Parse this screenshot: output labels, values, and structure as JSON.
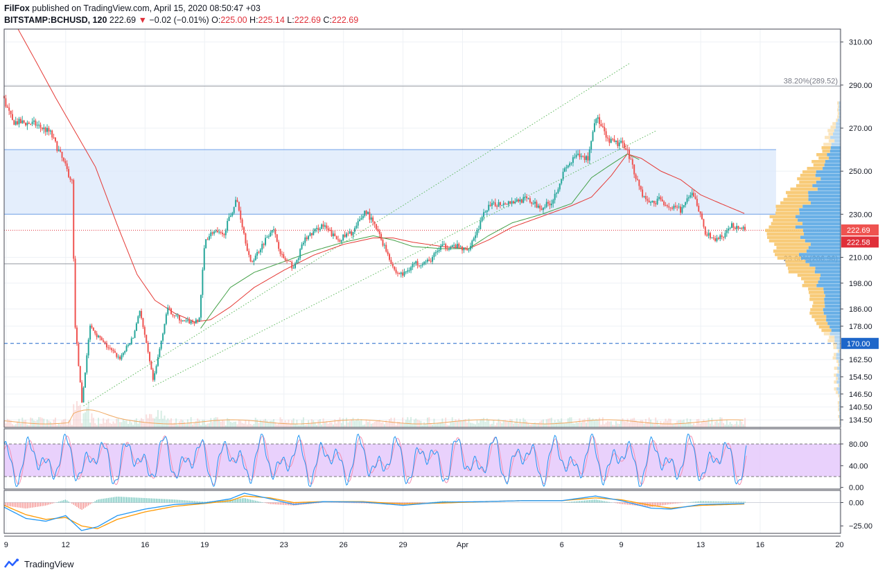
{
  "header": {
    "author": "FilFox",
    "published_text": "published on TradingView.com, April 15, 2020 08:50:47 +03",
    "symbol": "BITSTAMP:BCHUSD, 120",
    "last": "222.69",
    "change_arrow": "▼",
    "change": "−0.02 (−0.01%)",
    "o_label": "O:",
    "o": "225.00",
    "h_label": "H:",
    "h": "225.14",
    "l_label": "L:",
    "l": "222.69",
    "c_label": "C:",
    "c": "222.69"
  },
  "footer": {
    "brand": "TradingView"
  },
  "colors": {
    "up": "#26a69a",
    "down": "#ef5350",
    "ma_fast": "#43a047",
    "ma_slow": "#e53935",
    "zone": "#dbe8fb",
    "stoch_band": "#e3c6fb",
    "vp_up": "#f7c56a",
    "vp_down": "#5aa7e3",
    "marker_red": "#e0303a",
    "marker_blue": "#1e66c9"
  },
  "chart_data": [
    {
      "type": "candlestick",
      "panel": "price",
      "y_scale": "linear",
      "ylim": [
        131,
        316
      ],
      "y_ticks": [
        310.0,
        290.0,
        270.0,
        250.0,
        230.0,
        210.0,
        198.0,
        186.0,
        178.0,
        162.5,
        154.5,
        146.5,
        140.5,
        134.5
      ],
      "x_ticks": [
        {
          "label": "9",
          "day": 9
        },
        {
          "label": "12",
          "day": 12
        },
        {
          "label": "16",
          "day": 16
        },
        {
          "label": "19",
          "day": 19
        },
        {
          "label": "23",
          "day": 23
        },
        {
          "label": "26",
          "day": 26
        },
        {
          "label": "29",
          "day": 29
        },
        {
          "label": "Apr",
          "day": 32
        },
        {
          "label": "6",
          "day": 37
        },
        {
          "label": "9",
          "day": 40
        },
        {
          "label": "13",
          "day": 44
        },
        {
          "label": "16",
          "day": 47
        },
        {
          "label": "20",
          "day": 51
        }
      ],
      "xlim_days": [
        8.9,
        51.05
      ],
      "last_day": 46.3,
      "anchors": [
        [
          8.9,
          285
        ],
        [
          9.4,
          273
        ],
        [
          10.5,
          272
        ],
        [
          11.3,
          268
        ],
        [
          11.8,
          258
        ],
        [
          12.4,
          245
        ],
        [
          12.55,
          180
        ],
        [
          12.9,
          142
        ],
        [
          13.3,
          178
        ],
        [
          14,
          170
        ],
        [
          14.8,
          163
        ],
        [
          15.5,
          173
        ],
        [
          15.8,
          186
        ],
        [
          16.3,
          162
        ],
        [
          16.5,
          152
        ],
        [
          17.2,
          186
        ],
        [
          18,
          180
        ],
        [
          18.8,
          180
        ],
        [
          19.1,
          218
        ],
        [
          19.5,
          222
        ],
        [
          20,
          220
        ],
        [
          20.7,
          237
        ],
        [
          21.4,
          207
        ],
        [
          22,
          216
        ],
        [
          22.5,
          224
        ],
        [
          23,
          210
        ],
        [
          23.6,
          205
        ],
        [
          24.1,
          218
        ],
        [
          25,
          225
        ],
        [
          25.8,
          218
        ],
        [
          26.6,
          222
        ],
        [
          27.2,
          232
        ],
        [
          27.8,
          222
        ],
        [
          28.3,
          212
        ],
        [
          28.7,
          203
        ],
        [
          29.1,
          202
        ],
        [
          29.6,
          207
        ],
        [
          30.4,
          208
        ],
        [
          31,
          215
        ],
        [
          31.8,
          215
        ],
        [
          32.3,
          213
        ],
        [
          32.8,
          222
        ],
        [
          33.3,
          233
        ],
        [
          33.9,
          235
        ],
        [
          34.6,
          236
        ],
        [
          35.3,
          237
        ],
        [
          36,
          233
        ],
        [
          36.6,
          236
        ],
        [
          37.2,
          250
        ],
        [
          37.8,
          257
        ],
        [
          38.4,
          256
        ],
        [
          38.8,
          276
        ],
        [
          39.4,
          264
        ],
        [
          40.3,
          262
        ],
        [
          40.8,
          248
        ],
        [
          41.2,
          238
        ],
        [
          41.6,
          235
        ],
        [
          42,
          237
        ],
        [
          42.6,
          233
        ],
        [
          43.1,
          232
        ],
        [
          43.7,
          240
        ],
        [
          44.05,
          230
        ],
        [
          44.3,
          222
        ],
        [
          44.7,
          218
        ],
        [
          45.3,
          220
        ],
        [
          45.6,
          225
        ],
        [
          46,
          224
        ],
        [
          46.3,
          222.69
        ]
      ],
      "ma_fast_anchors": [
        [
          18.8,
          177
        ],
        [
          19.5,
          186
        ],
        [
          20.3,
          196
        ],
        [
          21.5,
          203
        ],
        [
          23,
          208
        ],
        [
          24.5,
          213
        ],
        [
          26,
          217
        ],
        [
          27.5,
          220
        ],
        [
          28.5,
          218
        ],
        [
          29.5,
          215
        ],
        [
          31,
          214
        ],
        [
          32.3,
          214
        ],
        [
          33.3,
          220
        ],
        [
          34.5,
          226
        ],
        [
          36,
          230
        ],
        [
          37.5,
          235
        ],
        [
          38.5,
          247
        ],
        [
          39.3,
          252
        ],
        [
          40.3,
          258
        ],
        [
          41,
          255
        ]
      ],
      "ma_slow_anchors": [
        [
          9.6,
          316
        ],
        [
          10.5,
          301
        ],
        [
          11.5,
          284
        ],
        [
          12.5,
          268
        ],
        [
          13.5,
          252
        ],
        [
          14.6,
          225
        ],
        [
          15.6,
          202
        ],
        [
          16.5,
          190
        ],
        [
          17.5,
          184
        ],
        [
          18.5,
          180
        ],
        [
          19.3,
          181
        ],
        [
          20.3,
          187
        ],
        [
          21.5,
          196
        ],
        [
          23,
          204
        ],
        [
          24.5,
          211
        ],
        [
          26,
          216
        ],
        [
          27.5,
          219
        ],
        [
          28.5,
          219
        ],
        [
          29.5,
          217
        ],
        [
          31,
          215
        ],
        [
          32.3,
          214
        ],
        [
          33.3,
          218
        ],
        [
          34.5,
          224
        ],
        [
          36,
          229
        ],
        [
          37.5,
          234
        ],
        [
          38.5,
          238
        ],
        [
          39.5,
          248
        ],
        [
          40.3,
          258
        ],
        [
          41,
          256
        ],
        [
          42,
          250
        ],
        [
          43,
          246
        ],
        [
          44,
          239
        ],
        [
          45,
          235
        ],
        [
          46.3,
          230
        ]
      ],
      "horizontal_lines": [
        {
          "value": 289.52,
          "label": "38.20%(289.52)",
          "style": "solid",
          "color": "#9598a1"
        },
        {
          "value": 206.96,
          "label": "23.60%(206.96)",
          "style": "solid",
          "color": "#9598a1"
        },
        {
          "value": 222.58,
          "style": "dotted",
          "color": "#e0303a"
        },
        {
          "value": 170.0,
          "style": "dashed",
          "color": "#1e66c9"
        }
      ],
      "zone": {
        "from_day": 8.9,
        "to_day": 47.8,
        "y_from": 230,
        "y_to": 260
      },
      "trendlines": [
        {
          "from": [
            12.9,
            141
          ],
          "to": [
            40.4,
            300
          ]
        },
        {
          "from": [
            16.4,
            150
          ],
          "to": [
            41.8,
            269
          ]
        }
      ],
      "price_labels": [
        {
          "value": 222.69,
          "text": "222.69",
          "color": "#ef5350"
        },
        {
          "value": 222.58,
          "text": "222.58",
          "color": "#e0303a"
        },
        {
          "value": 170.0,
          "text": "170.00",
          "color": "#1e66c9"
        }
      ],
      "volume_profile_note": "horizontal volume histogram at right edge"
    },
    {
      "type": "line",
      "panel": "stochastic",
      "ylim": [
        -3,
        108
      ],
      "y_ticks": [
        80.0,
        40.0,
        0.0
      ],
      "band": [
        20,
        80
      ],
      "series": [
        {
          "color": "#2196f3"
        },
        {
          "color": "#f48fb1"
        }
      ]
    },
    {
      "type": "histogram+line",
      "panel": "macd",
      "ylim": [
        -33,
        13
      ],
      "y_ticks": [
        0.0,
        -25.0
      ],
      "series": [
        {
          "color": "#2196f3"
        },
        {
          "color": "#ff9800"
        }
      ]
    }
  ]
}
